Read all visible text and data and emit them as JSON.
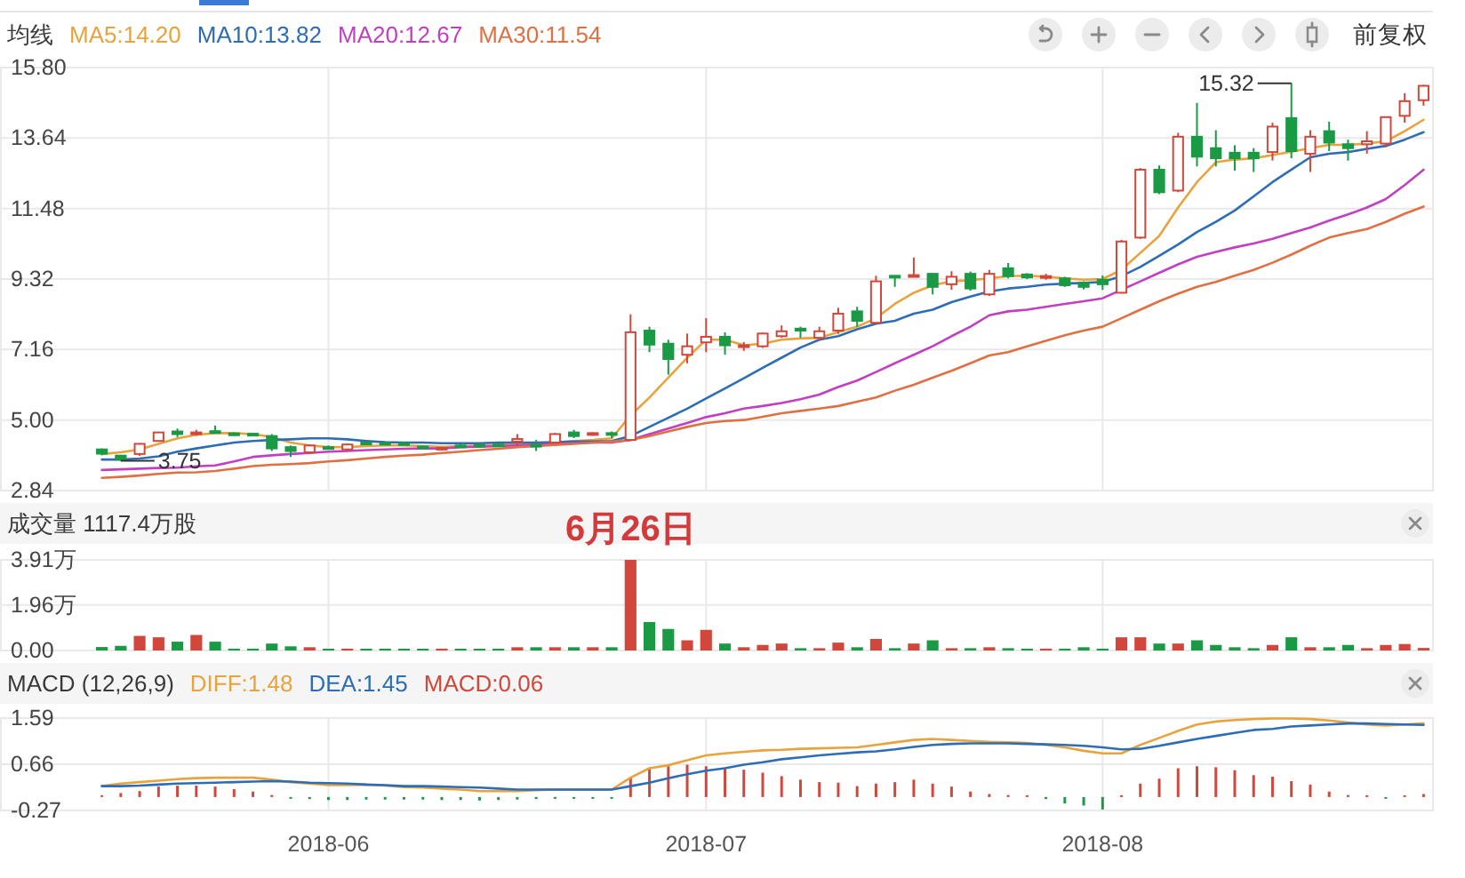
{
  "chart_data": [
    {
      "type": "candlestick",
      "title": "均线",
      "legend": "top left",
      "grid": true,
      "tick_labels": "y",
      "categories": [
        null,
        null,
        null,
        null,
        null,
        null,
        null,
        null,
        null,
        null,
        null,
        null,
        "2018-06",
        null,
        null,
        null,
        null,
        null,
        null,
        null,
        null,
        null,
        null,
        null,
        null,
        null,
        null,
        null,
        null,
        null,
        null,
        null,
        "2018-07",
        null,
        null,
        null,
        null,
        null,
        null,
        null,
        null,
        null,
        null,
        null,
        null,
        null,
        null,
        null,
        null,
        null,
        null,
        null,
        null,
        "2018-08",
        null,
        null,
        null,
        null,
        null,
        null,
        null,
        null,
        null,
        null,
        null,
        null,
        null,
        null,
        null,
        null,
        null
      ],
      "ohlc": [
        [
          4.1,
          4.13,
          3.92,
          3.97
        ],
        [
          3.91,
          3.93,
          3.75,
          3.79
        ],
        [
          3.96,
          4.29,
          3.9,
          4.27
        ],
        [
          4.36,
          4.64,
          4.34,
          4.62
        ],
        [
          4.65,
          4.74,
          4.48,
          4.57
        ],
        [
          4.58,
          4.7,
          4.52,
          4.62
        ],
        [
          4.66,
          4.83,
          4.58,
          4.62
        ],
        [
          4.59,
          4.62,
          4.52,
          4.56
        ],
        [
          4.58,
          4.6,
          4.5,
          4.53
        ],
        [
          4.51,
          4.57,
          4.05,
          4.13
        ],
        [
          4.17,
          4.22,
          3.87,
          4.05
        ],
        [
          4.01,
          4.25,
          3.98,
          4.22
        ],
        [
          4.17,
          4.22,
          4.1,
          4.15
        ],
        [
          4.1,
          4.28,
          4.06,
          4.25
        ],
        [
          4.31,
          4.35,
          4.25,
          4.29
        ],
        [
          4.3,
          4.34,
          4.26,
          4.29
        ],
        [
          4.29,
          4.33,
          4.25,
          4.28
        ],
        [
          4.19,
          4.22,
          4.12,
          4.15
        ],
        [
          4.1,
          4.18,
          4.08,
          4.15
        ],
        [
          4.22,
          4.26,
          4.18,
          4.2
        ],
        [
          4.24,
          4.28,
          4.21,
          4.23
        ],
        [
          4.25,
          4.29,
          4.21,
          4.24
        ],
        [
          4.34,
          4.57,
          4.22,
          4.42
        ],
        [
          4.24,
          4.39,
          4.05,
          4.22
        ],
        [
          4.31,
          4.6,
          4.28,
          4.57
        ],
        [
          4.62,
          4.7,
          4.45,
          4.51
        ],
        [
          4.55,
          4.62,
          4.52,
          4.6
        ],
        [
          4.6,
          4.65,
          4.45,
          4.55
        ],
        [
          4.39,
          8.24,
          4.36,
          7.69
        ],
        [
          7.74,
          7.86,
          7.08,
          7.31
        ],
        [
          7.34,
          7.46,
          6.39,
          6.87
        ],
        [
          7.0,
          7.65,
          6.74,
          7.26
        ],
        [
          7.38,
          8.12,
          7.08,
          7.55
        ],
        [
          7.55,
          7.69,
          7.0,
          7.29
        ],
        [
          7.26,
          7.39,
          7.12,
          7.29
        ],
        [
          7.26,
          7.68,
          7.21,
          7.65
        ],
        [
          7.57,
          7.9,
          7.52,
          7.72
        ],
        [
          7.8,
          7.86,
          7.52,
          7.74
        ],
        [
          7.52,
          7.86,
          7.43,
          7.72
        ],
        [
          7.74,
          8.44,
          7.64,
          8.26
        ],
        [
          8.33,
          8.47,
          7.86,
          8.04
        ],
        [
          7.98,
          9.42,
          7.95,
          9.25
        ],
        [
          9.42,
          9.43,
          9.08,
          9.4
        ],
        [
          9.4,
          9.98,
          9.38,
          9.44
        ],
        [
          9.48,
          9.5,
          8.85,
          9.08
        ],
        [
          9.16,
          9.56,
          8.99,
          9.39
        ],
        [
          9.48,
          9.55,
          8.96,
          9.03
        ],
        [
          8.85,
          9.6,
          8.8,
          9.48
        ],
        [
          9.65,
          9.81,
          9.34,
          9.41
        ],
        [
          9.46,
          9.5,
          9.32,
          9.37
        ],
        [
          9.37,
          9.48,
          9.3,
          9.41
        ],
        [
          9.34,
          9.39,
          9.08,
          9.13
        ],
        [
          9.2,
          9.25,
          9.0,
          9.08
        ],
        [
          9.3,
          9.43,
          8.99,
          9.16
        ],
        [
          8.9,
          10.52,
          8.88,
          10.47
        ],
        [
          10.59,
          12.72,
          10.55,
          12.67
        ],
        [
          12.67,
          12.8,
          11.92,
          11.98
        ],
        [
          12.03,
          13.8,
          11.98,
          13.68
        ],
        [
          13.68,
          14.72,
          12.77,
          13.07
        ],
        [
          13.33,
          13.88,
          12.77,
          13.02
        ],
        [
          13.19,
          13.42,
          12.64,
          13.02
        ],
        [
          13.19,
          13.33,
          12.6,
          13.02
        ],
        [
          13.21,
          14.11,
          12.95,
          13.99
        ],
        [
          14.25,
          15.32,
          13.02,
          13.24
        ],
        [
          13.16,
          13.88,
          12.6,
          13.68
        ],
        [
          13.85,
          14.14,
          13.24,
          13.5
        ],
        [
          13.45,
          13.59,
          12.95,
          13.33
        ],
        [
          13.45,
          13.85,
          13.16,
          13.54
        ],
        [
          13.47,
          14.28,
          13.36,
          14.28
        ],
        [
          14.32,
          15.01,
          14.11,
          14.77
        ],
        [
          14.8,
          15.27,
          14.63,
          15.24
        ]
      ],
      "colors": [
        "#1a9a45",
        "#1a9a45",
        "#d2473b",
        "#d2473b",
        "#1a9a45",
        "#d2473b",
        "#1a9a45",
        "#1a9a45",
        "#1a9a45",
        "#1a9a45",
        "#1a9a45",
        "#d2473b",
        "#1a9a45",
        "#d2473b",
        "#1a9a45",
        "#1a9a45",
        "#1a9a45",
        "#1a9a45",
        "#d2473b",
        "#1a9a45",
        "#1a9a45",
        "#1a9a45",
        "#d2473b",
        "#1a9a45",
        "#d2473b",
        "#1a9a45",
        "#d2473b",
        "#1a9a45",
        "#d2473b",
        "#1a9a45",
        "#1a9a45",
        "#d2473b",
        "#d2473b",
        "#1a9a45",
        "#d2473b",
        "#d2473b",
        "#d2473b",
        "#1a9a45",
        "#d2473b",
        "#d2473b",
        "#1a9a45",
        "#d2473b",
        "#1a9a45",
        "#d2473b",
        "#1a9a45",
        "#d2473b",
        "#1a9a45",
        "#d2473b",
        "#1a9a45",
        "#1a9a45",
        "#d2473b",
        "#1a9a45",
        "#1a9a45",
        "#1a9a45",
        "#d2473b",
        "#d2473b",
        "#1a9a45",
        "#d2473b",
        "#1a9a45",
        "#1a9a45",
        "#1a9a45",
        "#1a9a45",
        "#d2473b",
        "#1a9a45",
        "#d2473b",
        "#1a9a45",
        "#1a9a45",
        "#d2473b",
        "#d2473b",
        "#d2473b",
        "#d2473b"
      ],
      "series": [
        {
          "type": "line",
          "name": "MA5:14.20",
          "color": "#e8a33d",
          "values": [
            3.96,
            4.01,
            4.1,
            4.27,
            4.44,
            4.55,
            4.6,
            4.6,
            4.57,
            4.48,
            4.31,
            4.22,
            4.17,
            4.17,
            4.2,
            4.22,
            4.22,
            4.2,
            4.18,
            4.2,
            4.22,
            4.24,
            4.27,
            4.27,
            4.31,
            4.36,
            4.39,
            4.44,
            5.14,
            5.69,
            6.3,
            6.91,
            7.46,
            7.46,
            7.29,
            7.34,
            7.46,
            7.5,
            7.52,
            7.69,
            7.86,
            8.12,
            8.56,
            8.9,
            9.13,
            9.25,
            9.29,
            9.34,
            9.41,
            9.42,
            9.39,
            9.34,
            9.3,
            9.32,
            9.6,
            10.12,
            10.64,
            11.51,
            12.29,
            12.9,
            12.98,
            13.02,
            13.12,
            13.22,
            13.33,
            13.43,
            13.43,
            13.47,
            13.54,
            13.85,
            14.2
          ]
        },
        {
          "type": "line",
          "name": "MA10:13.82",
          "color": "#2d6db5",
          "values": [
            3.79,
            3.79,
            3.82,
            3.89,
            4.03,
            4.13,
            4.22,
            4.31,
            4.36,
            4.39,
            4.41,
            4.44,
            4.44,
            4.41,
            4.36,
            4.32,
            4.31,
            4.31,
            4.29,
            4.29,
            4.29,
            4.31,
            4.31,
            4.31,
            4.32,
            4.34,
            4.34,
            4.36,
            4.51,
            4.79,
            5.07,
            5.35,
            5.66,
            5.97,
            6.28,
            6.6,
            6.91,
            7.22,
            7.46,
            7.57,
            7.78,
            7.95,
            8.04,
            8.26,
            8.38,
            8.61,
            8.78,
            8.94,
            9.03,
            9.08,
            9.15,
            9.18,
            9.2,
            9.23,
            9.41,
            9.69,
            10.03,
            10.38,
            10.76,
            11.07,
            11.42,
            11.85,
            12.29,
            12.67,
            13.05,
            13.16,
            13.21,
            13.31,
            13.4,
            13.59,
            13.82
          ]
        },
        {
          "type": "line",
          "name": "MA20:12.67",
          "color": "#c23fc2",
          "values": [
            3.47,
            3.49,
            3.51,
            3.53,
            3.54,
            3.58,
            3.61,
            3.73,
            3.87,
            3.92,
            3.96,
            3.99,
            4.03,
            4.05,
            4.08,
            4.1,
            4.12,
            4.13,
            4.13,
            4.17,
            4.18,
            4.2,
            4.22,
            4.25,
            4.27,
            4.29,
            4.31,
            4.31,
            4.39,
            4.57,
            4.74,
            4.91,
            5.09,
            5.21,
            5.35,
            5.43,
            5.52,
            5.64,
            5.78,
            6.01,
            6.21,
            6.47,
            6.74,
            7.0,
            7.26,
            7.57,
            7.86,
            8.21,
            8.33,
            8.38,
            8.47,
            8.56,
            8.64,
            8.73,
            8.99,
            9.25,
            9.51,
            9.77,
            10.0,
            10.15,
            10.29,
            10.41,
            10.55,
            10.73,
            10.9,
            11.11,
            11.3,
            11.51,
            11.77,
            12.2,
            12.67
          ]
        },
        {
          "type": "line",
          "name": "MA30:11.54",
          "color": "#e07042",
          "values": [
            3.23,
            3.26,
            3.3,
            3.35,
            3.39,
            3.4,
            3.44,
            3.51,
            3.59,
            3.63,
            3.65,
            3.68,
            3.73,
            3.77,
            3.82,
            3.87,
            3.91,
            3.94,
            3.99,
            4.03,
            4.08,
            4.12,
            4.17,
            4.2,
            4.24,
            4.27,
            4.31,
            4.34,
            4.39,
            4.51,
            4.65,
            4.79,
            4.91,
            4.97,
            5.0,
            5.1,
            5.21,
            5.28,
            5.35,
            5.43,
            5.56,
            5.69,
            5.9,
            6.08,
            6.3,
            6.51,
            6.74,
            6.98,
            7.08,
            7.26,
            7.43,
            7.6,
            7.74,
            7.86,
            8.12,
            8.38,
            8.64,
            8.87,
            9.08,
            9.23,
            9.42,
            9.6,
            9.82,
            10.07,
            10.34,
            10.59,
            10.73,
            10.85,
            11.07,
            11.32,
            11.54
          ]
        }
      ],
      "ylim": [
        2.84,
        15.8
      ],
      "yticks": [
        2.84,
        {
          "value": 5,
          "label": "5.00"
        },
        7.16,
        9.32,
        11.48,
        13.64,
        {
          "value": 15.8,
          "label": "15.80"
        }
      ],
      "annotations": [
        "15.32",
        "3.75",
        "前复权"
      ]
    },
    {
      "type": "bar",
      "title": "成交量 1117.4万股",
      "grid": true,
      "tick_labels": "y",
      "categories": [
        null,
        null,
        null,
        null,
        null,
        null,
        null,
        null,
        null,
        null,
        null,
        null,
        "2018-06",
        null,
        null,
        null,
        null,
        null,
        null,
        null,
        null,
        null,
        null,
        null,
        null,
        null,
        null,
        null,
        null,
        null,
        null,
        null,
        "2018-07",
        null,
        null,
        null,
        null,
        null,
        null,
        null,
        null,
        null,
        null,
        null,
        null,
        null,
        null,
        null,
        null,
        null,
        null,
        null,
        null,
        "2018-08",
        null,
        null,
        null,
        null,
        null,
        null,
        null,
        null,
        null,
        null,
        null,
        null,
        null,
        null,
        null,
        null,
        null
      ],
      "values": [
        0.15,
        0.2,
        0.63,
        0.57,
        0.38,
        0.67,
        0.38,
        0.08,
        0.08,
        0.3,
        0.18,
        0.14,
        0.04,
        0.08,
        0.06,
        0.08,
        0.06,
        0.06,
        0.08,
        0.06,
        0.06,
        0.06,
        0.14,
        0.14,
        0.14,
        0.14,
        0.14,
        0.14,
        3.91,
        1.23,
        0.93,
        0.44,
        0.89,
        0.3,
        0.14,
        0.24,
        0.3,
        0.1,
        0.1,
        0.34,
        0.14,
        0.5,
        0.1,
        0.3,
        0.44,
        0.1,
        0.1,
        0.14,
        0.1,
        0.08,
        0.08,
        0.08,
        0.14,
        0.08,
        0.57,
        0.57,
        0.3,
        0.3,
        0.44,
        0.24,
        0.14,
        0.1,
        0.24,
        0.57,
        0.14,
        0.14,
        0.24,
        0.1,
        0.24,
        0.28,
        0.11
      ],
      "colors": [
        "#1a9a45",
        "#1a9a45",
        "#d2473b",
        "#d2473b",
        "#1a9a45",
        "#d2473b",
        "#1a9a45",
        "#1a9a45",
        "#1a9a45",
        "#1a9a45",
        "#1a9a45",
        "#d2473b",
        "#1a9a45",
        "#d2473b",
        "#1a9a45",
        "#1a9a45",
        "#1a9a45",
        "#1a9a45",
        "#d2473b",
        "#1a9a45",
        "#1a9a45",
        "#1a9a45",
        "#d2473b",
        "#1a9a45",
        "#d2473b",
        "#1a9a45",
        "#d2473b",
        "#1a9a45",
        "#d2473b",
        "#1a9a45",
        "#1a9a45",
        "#d2473b",
        "#d2473b",
        "#1a9a45",
        "#d2473b",
        "#d2473b",
        "#d2473b",
        "#1a9a45",
        "#d2473b",
        "#d2473b",
        "#1a9a45",
        "#d2473b",
        "#1a9a45",
        "#d2473b",
        "#1a9a45",
        "#d2473b",
        "#1a9a45",
        "#d2473b",
        "#1a9a45",
        "#1a9a45",
        "#d2473b",
        "#1a9a45",
        "#1a9a45",
        "#1a9a45",
        "#d2473b",
        "#d2473b",
        "#1a9a45",
        "#d2473b",
        "#1a9a45",
        "#1a9a45",
        "#1a9a45",
        "#1a9a45",
        "#d2473b",
        "#1a9a45",
        "#d2473b",
        "#1a9a45",
        "#1a9a45",
        "#d2473b",
        "#d2473b",
        "#d2473b",
        "#d2473b"
      ],
      "ylim": [
        0,
        3.91
      ],
      "yticks": [
        {
          "value": 0,
          "label": "0.00"
        },
        {
          "value": 1.96,
          "label": "1.96万"
        },
        {
          "value": 3.91,
          "label": "3.91万"
        }
      ],
      "annotations": [
        {
          "text": "6月26日",
          "y": 3.91
        }
      ]
    },
    {
      "type": "line",
      "title": "MACD (12,26,9)",
      "legend": "top left",
      "grid": true,
      "categories": [
        null,
        null,
        null,
        null,
        null,
        null,
        null,
        null,
        null,
        null,
        null,
        null,
        "2018-06",
        null,
        null,
        null,
        null,
        null,
        null,
        null,
        null,
        null,
        null,
        null,
        null,
        null,
        null,
        null,
        null,
        null,
        null,
        null,
        "2018-07",
        null,
        null,
        null,
        null,
        null,
        null,
        null,
        null,
        null,
        null,
        null,
        null,
        null,
        null,
        null,
        null,
        null,
        null,
        null,
        null,
        "2018-08",
        null,
        null,
        null,
        null,
        null,
        null,
        null,
        null,
        null,
        null,
        null,
        null,
        null,
        null,
        null,
        null,
        null
      ],
      "series": [
        {
          "name": "DIFF:1.48",
          "color": "#e8a33d",
          "values": [
            0.22,
            0.27,
            0.3,
            0.33,
            0.36,
            0.38,
            0.39,
            0.39,
            0.39,
            0.35,
            0.3,
            0.27,
            0.24,
            0.24,
            0.25,
            0.23,
            0.2,
            0.19,
            0.17,
            0.15,
            0.12,
            0.12,
            0.12,
            0.14,
            0.15,
            0.15,
            0.15,
            0.15,
            0.39,
            0.58,
            0.64,
            0.74,
            0.84,
            0.88,
            0.91,
            0.94,
            0.95,
            0.97,
            0.98,
            0.99,
            1.0,
            1.05,
            1.1,
            1.15,
            1.17,
            1.15,
            1.13,
            1.11,
            1.1,
            1.09,
            1.05,
            1.0,
            0.93,
            0.88,
            0.88,
            1.05,
            1.19,
            1.33,
            1.46,
            1.52,
            1.55,
            1.57,
            1.58,
            1.58,
            1.57,
            1.54,
            1.5,
            1.46,
            1.44,
            1.46,
            1.48
          ]
        },
        {
          "name": "DEA:1.45",
          "color": "#2d6db5",
          "values": [
            0.22,
            0.22,
            0.23,
            0.25,
            0.27,
            0.28,
            0.29,
            0.3,
            0.31,
            0.32,
            0.31,
            0.29,
            0.28,
            0.27,
            0.25,
            0.24,
            0.22,
            0.22,
            0.21,
            0.2,
            0.19,
            0.17,
            0.15,
            0.15,
            0.15,
            0.15,
            0.15,
            0.15,
            0.22,
            0.29,
            0.38,
            0.46,
            0.53,
            0.58,
            0.65,
            0.7,
            0.76,
            0.8,
            0.84,
            0.87,
            0.9,
            0.92,
            0.96,
            1.01,
            1.05,
            1.07,
            1.08,
            1.08,
            1.08,
            1.07,
            1.06,
            1.05,
            1.03,
            1.0,
            0.96,
            0.97,
            1.03,
            1.1,
            1.17,
            1.23,
            1.29,
            1.35,
            1.37,
            1.42,
            1.44,
            1.46,
            1.48,
            1.48,
            1.47,
            1.46,
            1.45
          ]
        },
        {
          "type": "bar",
          "name": "MACD:0.06",
          "color": "#d2473b",
          "values": [
            0.02,
            0.08,
            0.12,
            0.21,
            0.23,
            0.23,
            0.21,
            0.16,
            0.11,
            0.04,
            -0.02,
            -0.04,
            -0.06,
            -0.06,
            -0.05,
            -0.05,
            -0.05,
            -0.05,
            -0.06,
            -0.06,
            -0.07,
            -0.06,
            -0.05,
            -0.04,
            -0.03,
            -0.02,
            -0.01,
            -0.01,
            0.39,
            0.59,
            0.62,
            0.65,
            0.62,
            0.59,
            0.55,
            0.49,
            0.42,
            0.35,
            0.3,
            0.29,
            0.22,
            0.27,
            0.3,
            0.35,
            0.27,
            0.21,
            0.11,
            0.06,
            0.04,
            0.02,
            -0.04,
            -0.13,
            -0.17,
            -0.25,
            0.03,
            0.27,
            0.37,
            0.58,
            0.62,
            0.6,
            0.54,
            0.44,
            0.41,
            0.32,
            0.25,
            0.11,
            0.04,
            0.02,
            -0.02,
            0.01,
            0.06
          ],
          "colors": [
            "#d2473b",
            "#d2473b",
            "#d2473b",
            "#d2473b",
            "#d2473b",
            "#d2473b",
            "#d2473b",
            "#d2473b",
            "#d2473b",
            "#d2473b",
            "#1a9a45",
            "#1a9a45",
            "#1a9a45",
            "#1a9a45",
            "#1a9a45",
            "#1a9a45",
            "#1a9a45",
            "#1a9a45",
            "#1a9a45",
            "#1a9a45",
            "#1a9a45",
            "#1a9a45",
            "#1a9a45",
            "#1a9a45",
            "#1a9a45",
            "#1a9a45",
            "#1a9a45",
            "#1a9a45",
            "#d2473b",
            "#d2473b",
            "#d2473b",
            "#d2473b",
            "#d2473b",
            "#d2473b",
            "#d2473b",
            "#d2473b",
            "#d2473b",
            "#d2473b",
            "#d2473b",
            "#d2473b",
            "#d2473b",
            "#d2473b",
            "#d2473b",
            "#d2473b",
            "#d2473b",
            "#d2473b",
            "#d2473b",
            "#d2473b",
            "#d2473b",
            "#d2473b",
            "#1a9a45",
            "#1a9a45",
            "#1a9a45",
            "#1a9a45",
            "#d2473b",
            "#d2473b",
            "#d2473b",
            "#d2473b",
            "#d2473b",
            "#d2473b",
            "#d2473b",
            "#d2473b",
            "#d2473b",
            "#d2473b",
            "#d2473b",
            "#d2473b",
            "#d2473b",
            "#d2473b",
            "#1a9a45",
            "#d2473b",
            "#d2473b"
          ]
        }
      ],
      "ylim": [
        -0.27,
        1.59
      ],
      "yticks": [
        -0.27,
        0.66,
        1.59
      ]
    }
  ]
}
